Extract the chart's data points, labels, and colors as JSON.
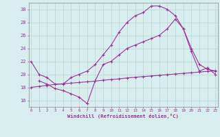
{
  "line1_x": [
    0,
    1,
    2,
    3,
    4,
    5,
    6,
    7,
    8,
    9,
    10,
    11,
    12,
    13,
    14,
    15,
    16,
    17,
    18,
    19,
    20,
    21,
    22,
    23
  ],
  "line1_y": [
    22,
    20,
    19.5,
    18.5,
    18.5,
    19.5,
    20.0,
    20.5,
    21.5,
    23.0,
    24.5,
    26.5,
    28.0,
    29.0,
    29.5,
    30.5,
    30.5,
    30.0,
    29.0,
    27.0,
    23.5,
    20.5,
    21.0,
    20.0
  ],
  "line2_x": [
    0,
    1,
    2,
    3,
    4,
    5,
    6,
    7,
    8,
    9,
    10,
    11,
    12,
    13,
    14,
    15,
    16,
    17,
    18,
    19,
    20,
    21,
    22,
    23
  ],
  "line2_y": [
    18.0,
    18.15,
    18.3,
    18.45,
    18.55,
    18.65,
    18.75,
    18.85,
    18.95,
    19.1,
    19.2,
    19.3,
    19.45,
    19.55,
    19.65,
    19.75,
    19.85,
    19.95,
    20.05,
    20.15,
    20.25,
    20.35,
    20.45,
    20.55
  ],
  "line3_x": [
    1,
    2,
    3,
    4,
    5,
    6,
    7,
    8,
    9,
    10,
    11,
    12,
    13,
    14,
    15,
    16,
    17,
    18,
    19,
    20,
    21,
    22,
    23
  ],
  "line3_y": [
    19.0,
    18.5,
    17.8,
    17.5,
    17.0,
    16.5,
    15.5,
    19.0,
    21.5,
    22.0,
    23.0,
    24.0,
    24.5,
    25.0,
    25.5,
    26.0,
    27.0,
    28.5,
    27.0,
    24.0,
    21.5,
    20.8,
    20.5
  ],
  "color": "#993399",
  "bg_color": "#d8eded",
  "grid_color": "#b8d4d4",
  "xlabel": "Windchill (Refroidissement éolien,°C)",
  "ylim": [
    15.0,
    31.0
  ],
  "xlim": [
    -0.3,
    23.3
  ],
  "yticks": [
    16,
    18,
    20,
    22,
    24,
    26,
    28,
    30
  ],
  "xticks": [
    0,
    1,
    2,
    3,
    4,
    5,
    6,
    7,
    8,
    9,
    10,
    11,
    12,
    13,
    14,
    15,
    16,
    17,
    18,
    19,
    20,
    21,
    22,
    23
  ],
  "marker": "+"
}
